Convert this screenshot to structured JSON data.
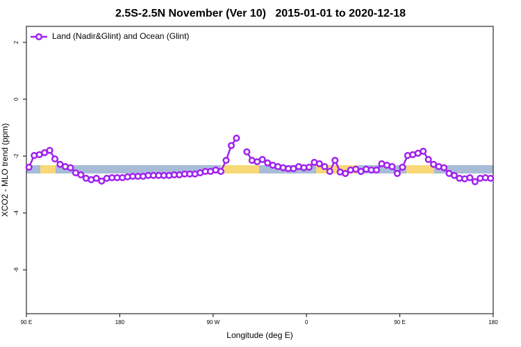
{
  "chart_data": {
    "type": "line",
    "title": "2.5S-2.5N November (Ver 10)   2015-01-01 to 2020-12-18",
    "x_label": "Longitude (deg E)",
    "y_label": "XCO2 - MLO trend (ppm)",
    "xlim": [
      90,
      540
    ],
    "ylim": [
      -7.54,
      2.56
    ],
    "xticks": [
      {
        "value": 90,
        "label": "90 E"
      },
      180,
      {
        "value": 270,
        "label": "90 W"
      },
      {
        "value": 360,
        "label": "0"
      },
      {
        "value": 450,
        "label": "90 E"
      },
      {
        "value": 540,
        "label": "180"
      }
    ],
    "yticks": [
      2,
      0,
      -2,
      -4,
      -6
    ],
    "legend": "top-left",
    "x": [
      92.5,
      97.5,
      102.5,
      107.5,
      112.5,
      117.5,
      122.5,
      127.5,
      132.5,
      137.5,
      142.5,
      147.5,
      152.5,
      157.5,
      162.5,
      167.5,
      172.5,
      177.5,
      182.5,
      187.5,
      192.5,
      197.5,
      202.5,
      207.5,
      212.5,
      217.5,
      222.5,
      227.5,
      232.5,
      237.5,
      242.5,
      247.5,
      252.5,
      257.5,
      262.5,
      267.5,
      272.5,
      277.5,
      282.5,
      287.5,
      292.5,
      297.5,
      302.5,
      307.5,
      312.5,
      317.5,
      322.5,
      327.5,
      332.5,
      337.5,
      342.5,
      347.5,
      352.5,
      357.5,
      362.5,
      367.5,
      372.5,
      377.5,
      382.5,
      387.5,
      392.5,
      397.5,
      402.5,
      407.5,
      412.5,
      417.5,
      422.5,
      427.5,
      432.5,
      437.5,
      442.5,
      447.5,
      452.5,
      457.5,
      462.5,
      467.5,
      472.5,
      477.5,
      482.5,
      487.5,
      492.5,
      497.5,
      502.5,
      507.5,
      512.5,
      517.5,
      522.5,
      527.5,
      532.5,
      537.5
    ],
    "series": [
      {
        "name": "Land (Nadir&Glint) and Ocean (Glint)",
        "color": "#a020f0",
        "values": [
          -2.39,
          -1.98,
          -1.95,
          -1.88,
          -1.8,
          -2.1,
          -2.29,
          -2.37,
          -2.41,
          -2.59,
          -2.66,
          -2.78,
          -2.83,
          -2.78,
          -2.88,
          -2.78,
          -2.76,
          -2.76,
          -2.76,
          -2.73,
          -2.71,
          -2.71,
          -2.71,
          -2.68,
          -2.68,
          -2.68,
          -2.68,
          -2.68,
          -2.66,
          -2.66,
          -2.63,
          -2.63,
          -2.63,
          -2.59,
          -2.54,
          -2.54,
          -2.49,
          -2.54,
          -2.15,
          -1.63,
          -1.37,
          null,
          -1.85,
          -2.15,
          -2.2,
          -2.12,
          -2.24,
          -2.32,
          -2.37,
          -2.41,
          -2.44,
          -2.44,
          -2.37,
          -2.41,
          -2.39,
          -2.22,
          -2.27,
          -2.37,
          -2.54,
          -2.15,
          -2.56,
          -2.61,
          -2.49,
          -2.46,
          -2.54,
          -2.46,
          -2.49,
          -2.49,
          -2.27,
          -2.32,
          -2.37,
          -2.61,
          -2.39,
          -1.98,
          -1.95,
          -1.9,
          -1.83,
          -2.12,
          -2.29,
          -2.37,
          -2.41,
          -2.61,
          -2.68,
          -2.78,
          -2.8,
          -2.76,
          -2.9,
          -2.78,
          -2.76,
          -2.78
        ]
      }
    ]
  }
}
